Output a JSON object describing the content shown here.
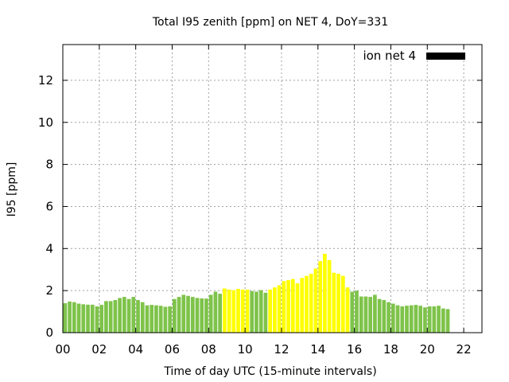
{
  "chart_data": {
    "type": "bar",
    "title": "Total I95 zenith [ppm] on NET 4, DoY=331",
    "xlabel": "Time of day UTC (15-minute intervals)",
    "ylabel": "I95 [ppm]",
    "xlim": [
      0,
      23
    ],
    "ylim": [
      0,
      13.7
    ],
    "x_ticks": [
      0,
      2,
      4,
      6,
      8,
      10,
      12,
      14,
      16,
      18,
      20,
      22
    ],
    "x_tick_labels": [
      "00",
      "02",
      "04",
      "06",
      "08",
      "10",
      "12",
      "14",
      "16",
      "18",
      "20",
      "22"
    ],
    "y_ticks": [
      0,
      2,
      4,
      6,
      8,
      10,
      12
    ],
    "y_tick_labels": [
      "0",
      "2",
      "4",
      "6",
      "8",
      "10",
      "12"
    ],
    "grid": true,
    "legend": {
      "label": "ion net 4",
      "color": "#000000",
      "position": "top-right"
    },
    "bar_colors": {
      "green": "#7ec34a",
      "yellow": "#ffff00"
    },
    "bars": {
      "x_start": 0.0,
      "step": 0.25,
      "values": [
        1.4,
        1.48,
        1.45,
        1.38,
        1.35,
        1.33,
        1.33,
        1.25,
        1.32,
        1.5,
        1.5,
        1.55,
        1.65,
        1.7,
        1.6,
        1.7,
        1.55,
        1.45,
        1.3,
        1.32,
        1.3,
        1.28,
        1.23,
        1.25,
        1.6,
        1.7,
        1.8,
        1.75,
        1.7,
        1.65,
        1.63,
        1.62,
        1.8,
        1.95,
        1.85,
        2.1,
        2.05,
        2.02,
        2.08,
        2.05,
        2.05,
        1.98,
        1.95,
        2.02,
        1.9,
        2.05,
        2.15,
        2.25,
        2.45,
        2.5,
        2.55,
        2.35,
        2.6,
        2.7,
        2.8,
        3.05,
        3.4,
        3.75,
        3.45,
        2.85,
        2.8,
        2.7,
        2.15,
        1.95,
        2.0,
        1.72,
        1.72,
        1.7,
        1.8,
        1.6,
        1.55,
        1.45,
        1.38,
        1.3,
        1.25,
        1.28,
        1.3,
        1.32,
        1.28,
        1.2,
        1.25,
        1.25,
        1.28,
        1.15,
        1.12
      ],
      "colors": [
        "green",
        "green",
        "green",
        "green",
        "green",
        "green",
        "green",
        "green",
        "green",
        "green",
        "green",
        "green",
        "green",
        "green",
        "green",
        "green",
        "green",
        "green",
        "green",
        "green",
        "green",
        "green",
        "green",
        "green",
        "green",
        "green",
        "green",
        "green",
        "green",
        "green",
        "green",
        "green",
        "green",
        "green",
        "green",
        "yellow",
        "yellow",
        "yellow",
        "yellow",
        "yellow",
        "yellow",
        "green",
        "green",
        "green",
        "green",
        "yellow",
        "yellow",
        "yellow",
        "yellow",
        "yellow",
        "yellow",
        "yellow",
        "yellow",
        "yellow",
        "yellow",
        "yellow",
        "yellow",
        "yellow",
        "yellow",
        "yellow",
        "yellow",
        "yellow",
        "yellow",
        "green",
        "green",
        "green",
        "green",
        "green",
        "green",
        "green",
        "green",
        "green",
        "green",
        "green",
        "green",
        "green",
        "green",
        "green",
        "green",
        "green",
        "green",
        "green",
        "green",
        "green",
        "green"
      ]
    }
  }
}
